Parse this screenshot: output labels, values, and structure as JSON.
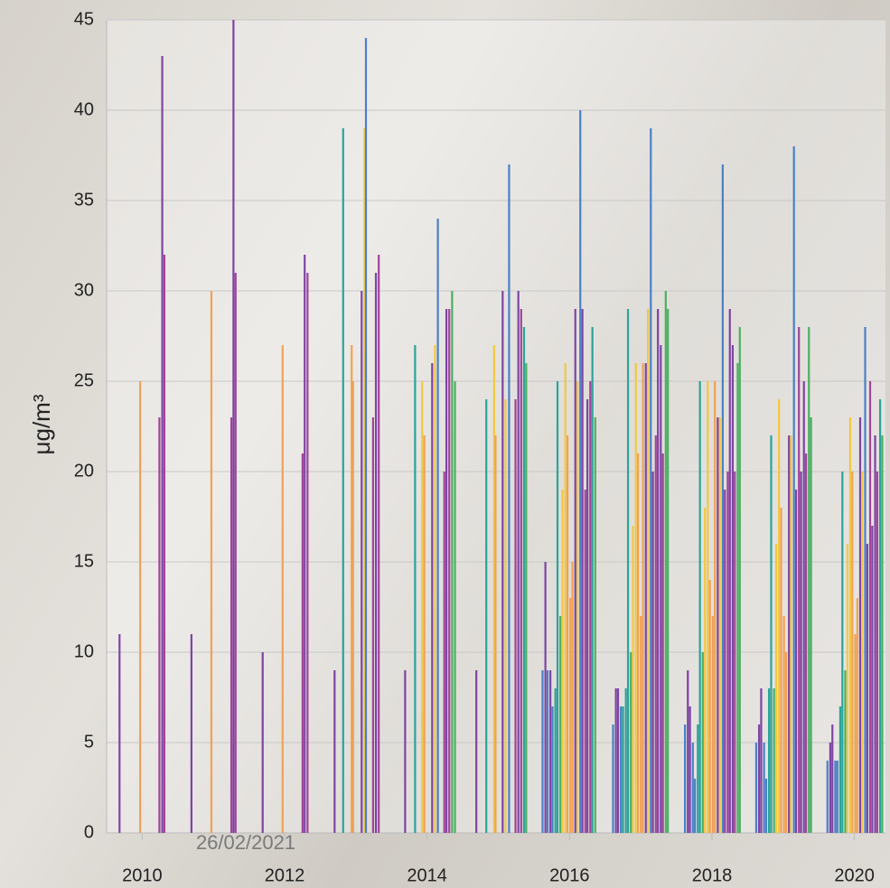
{
  "chart_data": {
    "type": "bar",
    "y_label": "μg/m³",
    "watermark": "26/02/2021",
    "xlim": [
      2009.5,
      2020.5
    ],
    "xticks": [
      2010,
      2012,
      2014,
      2016,
      2018,
      2020
    ],
    "ylim": [
      0,
      45
    ],
    "yticks": [
      0,
      5,
      10,
      15,
      20,
      25,
      30,
      35,
      40,
      45
    ],
    "grid": true,
    "x": [
      2009.68,
      2009.97,
      2010.24,
      2010.28,
      2010.31,
      2010.69,
      2010.97,
      2011.25,
      2011.28,
      2011.31,
      2011.69,
      2011.97,
      2012.25,
      2012.28,
      2012.32,
      2012.7,
      2012.82,
      2012.94,
      2012.96,
      2013.08,
      2013.12,
      2013.14,
      2013.24,
      2013.28,
      2013.32,
      2013.69,
      2013.83,
      2013.93,
      2013.96,
      2014.07,
      2014.11,
      2014.15,
      2014.24,
      2014.27,
      2014.31,
      2014.35,
      2014.39,
      2014.69,
      2014.83,
      2014.94,
      2014.96,
      2015.06,
      2015.1,
      2015.15,
      2015.24,
      2015.28,
      2015.32,
      2015.36,
      2015.39,
      2015.62,
      2015.66,
      2015.69,
      2015.73,
      2015.76,
      2015.8,
      2015.83,
      2015.87,
      2015.9,
      2015.94,
      2015.97,
      2016.01,
      2016.04,
      2016.08,
      2016.11,
      2016.15,
      2016.18,
      2016.22,
      2016.25,
      2016.29,
      2016.32,
      2016.36,
      2016.61,
      2016.65,
      2016.68,
      2016.72,
      2016.75,
      2016.79,
      2016.82,
      2016.86,
      2016.89,
      2016.93,
      2016.96,
      2017.0,
      2017.03,
      2017.07,
      2017.1,
      2017.14,
      2017.17,
      2017.21,
      2017.24,
      2017.28,
      2017.31,
      2017.35,
      2017.38,
      2017.62,
      2017.66,
      2017.69,
      2017.73,
      2017.76,
      2017.8,
      2017.83,
      2017.87,
      2017.9,
      2017.94,
      2017.97,
      2018.01,
      2018.04,
      2018.08,
      2018.11,
      2018.15,
      2018.18,
      2018.22,
      2018.25,
      2018.29,
      2018.32,
      2018.36,
      2018.39,
      2018.62,
      2018.66,
      2018.69,
      2018.73,
      2018.76,
      2018.8,
      2018.83,
      2018.87,
      2018.9,
      2018.94,
      2018.97,
      2019.01,
      2019.04,
      2019.08,
      2019.11,
      2019.15,
      2019.18,
      2019.22,
      2019.25,
      2019.29,
      2019.32,
      2019.36,
      2019.39,
      2019.62,
      2019.66,
      2019.69,
      2019.73,
      2019.76,
      2019.8,
      2019.83,
      2019.87,
      2019.9,
      2019.94,
      2019.97,
      2020.01,
      2020.04,
      2020.08,
      2020.11,
      2020.15,
      2020.18,
      2020.22,
      2020.25,
      2020.29,
      2020.32,
      2020.36,
      2020.39
    ],
    "values": [
      11,
      25,
      23,
      43,
      32,
      11,
      30,
      23,
      45,
      31,
      10,
      27,
      21,
      32,
      31,
      9,
      39,
      27,
      25,
      30,
      39,
      44,
      23,
      31,
      32,
      9,
      27,
      25,
      22,
      26,
      27,
      34,
      20,
      29,
      29,
      30,
      25,
      9,
      24,
      27,
      22,
      30,
      24,
      37,
      24,
      30,
      29,
      28,
      26,
      9,
      15,
      9,
      9,
      7,
      8,
      25,
      12,
      19,
      26,
      22,
      13,
      15,
      29,
      25,
      40,
      29,
      19,
      24,
      25,
      28,
      23,
      6,
      8,
      8,
      7,
      7,
      8,
      29,
      10,
      17,
      26,
      21,
      12,
      26,
      26,
      29,
      39,
      20,
      22,
      29,
      27,
      21,
      30,
      29,
      6,
      9,
      7,
      5,
      3,
      6,
      25,
      10,
      18,
      25,
      14,
      12,
      25,
      23,
      23,
      37,
      19,
      20,
      29,
      27,
      20,
      26,
      28,
      5,
      6,
      8,
      5,
      3,
      8,
      22,
      8,
      16,
      24,
      18,
      12,
      10,
      22,
      22,
      38,
      19,
      28,
      20,
      25,
      21,
      28,
      23,
      4,
      5,
      6,
      4,
      4,
      7,
      20,
      9,
      16,
      23,
      20,
      11,
      13,
      23,
      20,
      28,
      16,
      25,
      17,
      22,
      20,
      24,
      22
    ],
    "colors": [
      "#7e44a3",
      "#f0a253",
      "#a0449a",
      "#7e44a3",
      "#a0449a",
      "#7e44a3",
      "#f0a253",
      "#a0449a",
      "#7e44a3",
      "#a0449a",
      "#7e44a3",
      "#f0a253",
      "#a0449a",
      "#7e44a3",
      "#a0449a",
      "#7e44a3",
      "#2ba39a",
      "#f0a253",
      "#f0a253",
      "#7e44a3",
      "#f2c744",
      "#4a80c6",
      "#a0449a",
      "#7e44a3",
      "#a0449a",
      "#7e44a3",
      "#2ba39a",
      "#f2c744",
      "#f0a253",
      "#7e44a3",
      "#f2c744",
      "#4a80c6",
      "#a0449a",
      "#7e44a3",
      "#a0449a",
      "#4caf62",
      "#4caf62",
      "#7e44a3",
      "#2ba39a",
      "#f2c744",
      "#f0a253",
      "#7e44a3",
      "#f2c744",
      "#4a80c6",
      "#a0449a",
      "#7e44a3",
      "#a0449a",
      "#2ba39a",
      "#4caf62",
      "#4a80c6",
      "#7e44a3",
      "#4a80c6",
      "#7e44a3",
      "#4a80c6",
      "#2ba39a",
      "#2ba39a",
      "#4caf62",
      "#f2c744",
      "#f2c744",
      "#f0a253",
      "#f0a253",
      "#f0a253",
      "#7e44a3",
      "#f2c744",
      "#4a80c6",
      "#7e44a3",
      "#a0449a",
      "#7e44a3",
      "#a0449a",
      "#2ba39a",
      "#4caf62",
      "#4a80c6",
      "#7e44a3",
      "#7e44a3",
      "#4a80c6",
      "#2ba39a",
      "#2ba39a",
      "#2ba39a",
      "#4caf62",
      "#f2c744",
      "#f2c744",
      "#f0a253",
      "#f0a253",
      "#f0a253",
      "#7e44a3",
      "#f2c744",
      "#4a80c6",
      "#7e44a3",
      "#a0449a",
      "#7e44a3",
      "#7e44a3",
      "#a0449a",
      "#4caf62",
      "#4caf62",
      "#4a80c6",
      "#7e44a3",
      "#7e44a3",
      "#4a80c6",
      "#4a80c6",
      "#2ba39a",
      "#2ba39a",
      "#4caf62",
      "#f2c744",
      "#f2c744",
      "#f0a253",
      "#f0a253",
      "#f0a253",
      "#7e44a3",
      "#f2c744",
      "#4a80c6",
      "#7e44a3",
      "#a0449a",
      "#7e44a3",
      "#7e44a3",
      "#a0449a",
      "#4caf62",
      "#4caf62",
      "#4a80c6",
      "#7e44a3",
      "#7e44a3",
      "#4a80c6",
      "#4a80c6",
      "#2ba39a",
      "#2ba39a",
      "#4caf62",
      "#f2c744",
      "#f2c744",
      "#f0a253",
      "#f0a253",
      "#f0a253",
      "#7e44a3",
      "#f2c744",
      "#4a80c6",
      "#7e44a3",
      "#a0449a",
      "#7e44a3",
      "#7e44a3",
      "#a0449a",
      "#4caf62",
      "#4caf62",
      "#4a80c6",
      "#7e44a3",
      "#7e44a3",
      "#4a80c6",
      "#4a80c6",
      "#2ba39a",
      "#2ba39a",
      "#4caf62",
      "#f2c744",
      "#f2c744",
      "#f0a253",
      "#f0a253",
      "#f0a253",
      "#7e44a3",
      "#f2c744",
      "#4a80c6",
      "#7e44a3",
      "#a0449a",
      "#7e44a3",
      "#7e44a3",
      "#a0449a",
      "#2ba39a",
      "#4caf62"
    ]
  }
}
